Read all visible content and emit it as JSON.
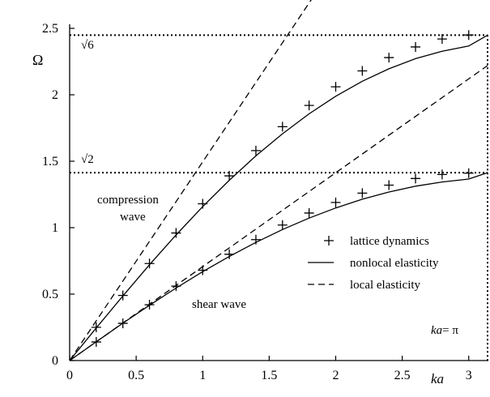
{
  "chart_data": {
    "type": "line",
    "xlabel": "ka",
    "ylabel": "Ω",
    "xlim": [
      0,
      3.1416
    ],
    "ylim": [
      0,
      2.5
    ],
    "xticks": [
      "0",
      "0.5",
      "1",
      "1.5",
      "2",
      "2.5",
      "3"
    ],
    "yticks": [
      "0",
      "0.5",
      "1",
      "1.5",
      "2",
      "2.5"
    ],
    "grid": false,
    "legend_position": "right-center",
    "legend": [
      {
        "label": "lattice dynamics",
        "style": "plus"
      },
      {
        "label": "nonlocal elasticity",
        "style": "solid"
      },
      {
        "label": "local elasticity",
        "style": "dashed"
      }
    ],
    "reference_lines": [
      {
        "label": "√6",
        "y": 2.449
      },
      {
        "label": "√2",
        "y": 1.414
      },
      {
        "label": "ka= π",
        "x": 3.1416
      }
    ],
    "annotations": {
      "compression_line1": "compression",
      "compression_line2": "wave",
      "shear": "shear wave",
      "ka_pi_prefix": "ka",
      "ka_pi_suffix": "= π"
    },
    "series": [
      {
        "group": "compression wave",
        "style": "plus",
        "x": [
          0.2,
          0.4,
          0.6,
          0.8,
          1.0,
          1.2,
          1.4,
          1.6,
          1.8,
          2.0,
          2.2,
          2.4,
          2.6,
          2.8,
          3.0
        ],
        "y": [
          0.25,
          0.49,
          0.73,
          0.96,
          1.18,
          1.39,
          1.58,
          1.76,
          1.92,
          2.06,
          2.18,
          2.28,
          2.36,
          2.42,
          2.45
        ]
      },
      {
        "group": "shear wave",
        "style": "plus",
        "x": [
          0.2,
          0.4,
          0.6,
          0.8,
          1.0,
          1.2,
          1.4,
          1.6,
          1.8,
          2.0,
          2.2,
          2.4,
          2.6,
          2.8,
          3.0
        ],
        "y": [
          0.14,
          0.28,
          0.42,
          0.56,
          0.68,
          0.8,
          0.91,
          1.02,
          1.11,
          1.19,
          1.26,
          1.32,
          1.37,
          1.4,
          1.41
        ]
      },
      {
        "group": "compression wave",
        "style": "solid",
        "x": [
          0,
          0.2,
          0.4,
          0.6,
          0.8,
          1.0,
          1.2,
          1.4,
          1.6,
          1.8,
          2.0,
          2.2,
          2.4,
          2.6,
          2.8,
          3.0,
          3.1416
        ],
        "y": [
          0,
          0.245,
          0.486,
          0.721,
          0.945,
          1.158,
          1.357,
          1.54,
          1.707,
          1.857,
          1.989,
          2.102,
          2.196,
          2.272,
          2.328,
          2.367,
          2.449
        ]
      },
      {
        "group": "shear wave",
        "style": "solid",
        "x": [
          0,
          0.2,
          0.4,
          0.6,
          0.8,
          1.0,
          1.2,
          1.4,
          1.6,
          1.8,
          2.0,
          2.2,
          2.4,
          2.6,
          2.8,
          3.0,
          3.1416
        ],
        "y": [
          0,
          0.141,
          0.281,
          0.416,
          0.546,
          0.669,
          0.783,
          0.889,
          0.986,
          1.072,
          1.148,
          1.214,
          1.268,
          1.312,
          1.344,
          1.366,
          1.414
        ]
      },
      {
        "group": "compression wave",
        "style": "dashed",
        "x": [
          0,
          2.04
        ],
        "y": [
          0,
          3.05
        ]
      },
      {
        "group": "shear wave",
        "style": "dashed",
        "x": [
          0,
          3.1416
        ],
        "y": [
          0,
          2.22
        ]
      }
    ]
  }
}
